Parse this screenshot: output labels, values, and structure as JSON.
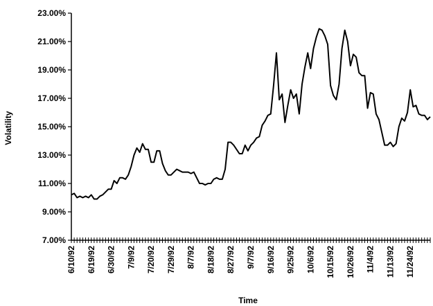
{
  "chart_data": {
    "type": "line",
    "x_label": "Time",
    "y_label": "Volatility",
    "color": "#000000",
    "categories": [
      "6/10/92",
      null,
      null,
      null,
      null,
      null,
      null,
      "6/19/92",
      null,
      null,
      null,
      null,
      null,
      null,
      "6/30/92",
      null,
      null,
      null,
      null,
      null,
      null,
      "7/9/92",
      null,
      null,
      null,
      null,
      null,
      null,
      "7/20/92",
      null,
      null,
      null,
      null,
      null,
      null,
      "7/29/92",
      null,
      null,
      null,
      null,
      null,
      null,
      "8/7/92",
      null,
      null,
      null,
      null,
      null,
      null,
      "8/18/92",
      null,
      null,
      null,
      null,
      null,
      null,
      "8/27/92",
      null,
      null,
      null,
      null,
      null,
      null,
      "9/7/92",
      null,
      null,
      null,
      null,
      null,
      null,
      "9/16/92",
      null,
      null,
      null,
      null,
      null,
      null,
      "9/25/92",
      null,
      null,
      null,
      null,
      null,
      null,
      "10/6/92",
      null,
      null,
      null,
      null,
      null,
      null,
      "10/15/92",
      null,
      null,
      null,
      null,
      null,
      null,
      "10/26/92",
      null,
      null,
      null,
      null,
      null,
      null,
      "11/4/92",
      null,
      null,
      null,
      null,
      null,
      null,
      "11/13/92",
      null,
      null,
      null,
      null,
      null,
      null,
      "11/24/92",
      null,
      null,
      null,
      null,
      null,
      null,
      null
    ],
    "values": [
      10.2,
      10.3,
      10.0,
      10.1,
      10.0,
      10.1,
      10.0,
      10.2,
      9.9,
      9.9,
      10.1,
      10.2,
      10.4,
      10.6,
      10.6,
      11.2,
      11.0,
      11.4,
      11.4,
      11.3,
      11.6,
      12.2,
      13.0,
      13.5,
      13.2,
      13.8,
      13.4,
      13.4,
      12.5,
      12.5,
      13.3,
      13.3,
      12.4,
      11.9,
      11.6,
      11.6,
      11.8,
      12.0,
      11.9,
      11.8,
      11.8,
      11.8,
      11.7,
      11.8,
      11.4,
      11.0,
      11.0,
      10.9,
      11.0,
      11.0,
      11.3,
      11.4,
      11.3,
      11.3,
      12.0,
      13.9,
      13.9,
      13.7,
      13.4,
      13.1,
      13.1,
      13.7,
      13.3,
      13.7,
      13.9,
      14.2,
      14.3,
      15.1,
      15.4,
      15.8,
      15.9,
      17.9,
      20.2,
      16.9,
      17.3,
      15.3,
      16.5,
      17.6,
      17.0,
      17.3,
      15.9,
      18.0,
      19.2,
      20.2,
      19.1,
      20.5,
      21.3,
      21.9,
      21.8,
      21.4,
      20.8,
      17.9,
      17.2,
      16.9,
      18.0,
      20.5,
      21.8,
      21.0,
      19.3,
      20.1,
      19.9,
      18.8,
      18.6,
      18.6,
      16.3,
      17.4,
      17.3,
      15.9,
      15.5,
      14.6,
      13.7,
      13.7,
      13.9,
      13.6,
      13.8,
      15.0,
      15.6,
      15.4,
      16.0,
      17.6,
      16.4,
      16.5,
      15.9,
      15.8,
      15.8,
      15.5,
      15.7
    ],
    "ylim": [
      7,
      23
    ],
    "yticks": [
      {
        "value": 7,
        "label": "7.00%"
      },
      {
        "value": 9,
        "label": "9.00%"
      },
      {
        "value": 11,
        "label": "11.00%"
      },
      {
        "value": 13,
        "label": "13.00%"
      },
      {
        "value": 15,
        "label": "15.00%"
      },
      {
        "value": 17,
        "label": "17.00%"
      },
      {
        "value": 19,
        "label": "19.00%"
      },
      {
        "value": 21,
        "label": "21.00%"
      },
      {
        "value": 23,
        "label": "23.00%"
      }
    ]
  }
}
